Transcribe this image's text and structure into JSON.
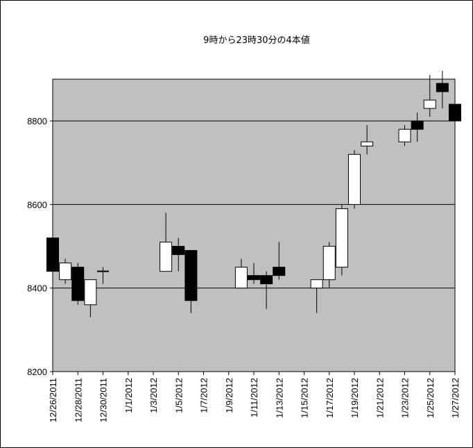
{
  "chart_data": {
    "type": "candlestick",
    "title": "9時から23時30分の4本値",
    "xlabel": "",
    "ylabel": "",
    "ylim": [
      8200,
      8900
    ],
    "yticks": [
      8200,
      8400,
      8600,
      8800
    ],
    "grid": "horizontal",
    "plot_background": "#c0c0c0",
    "up_color": "#ffffff",
    "down_color": "#000000",
    "x_start": "2011-12-26",
    "x_end": "2012-01-27",
    "xticks": [
      "12/26/2011",
      "12/28/2011",
      "12/30/2011",
      "1/1/2012",
      "1/3/2012",
      "1/5/2012",
      "1/7/2012",
      "1/9/2012",
      "1/11/2012",
      "1/13/2012",
      "1/15/2012",
      "1/17/2012",
      "1/19/2012",
      "1/21/2012",
      "1/23/2012",
      "1/25/2012",
      "1/27/2012"
    ],
    "candles": [
      {
        "date": "2011-12-26",
        "open": 8520,
        "high": 8520,
        "low": 8440,
        "close": 8440
      },
      {
        "date": "2011-12-27",
        "open": 8420,
        "high": 8470,
        "low": 8410,
        "close": 8460
      },
      {
        "date": "2011-12-28",
        "open": 8450,
        "high": 8460,
        "low": 8360,
        "close": 8370
      },
      {
        "date": "2011-12-29",
        "open": 8360,
        "high": 8420,
        "low": 8330,
        "close": 8420
      },
      {
        "date": "2011-12-30",
        "open": 8440,
        "high": 8450,
        "low": 8410,
        "close": 8440
      },
      {
        "date": "2012-01-04",
        "open": 8440,
        "high": 8580,
        "low": 8440,
        "close": 8510
      },
      {
        "date": "2012-01-05",
        "open": 8500,
        "high": 8520,
        "low": 8440,
        "close": 8480
      },
      {
        "date": "2012-01-06",
        "open": 8490,
        "high": 8490,
        "low": 8340,
        "close": 8370
      },
      {
        "date": "2012-01-10",
        "open": 8400,
        "high": 8470,
        "low": 8400,
        "close": 8450
      },
      {
        "date": "2012-01-11",
        "open": 8430,
        "high": 8460,
        "low": 8410,
        "close": 8420
      },
      {
        "date": "2012-01-12",
        "open": 8430,
        "high": 8440,
        "low": 8350,
        "close": 8410
      },
      {
        "date": "2012-01-13",
        "open": 8450,
        "high": 8510,
        "low": 8420,
        "close": 8430
      },
      {
        "date": "2012-01-16",
        "open": 8400,
        "high": 8420,
        "low": 8340,
        "close": 8420
      },
      {
        "date": "2012-01-17",
        "open": 8420,
        "high": 8510,
        "low": 8400,
        "close": 8500
      },
      {
        "date": "2012-01-18",
        "open": 8450,
        "high": 8600,
        "low": 8430,
        "close": 8590
      },
      {
        "date": "2012-01-19",
        "open": 8600,
        "high": 8730,
        "low": 8590,
        "close": 8720
      },
      {
        "date": "2012-01-20",
        "open": 8740,
        "high": 8790,
        "low": 8720,
        "close": 8750
      },
      {
        "date": "2012-01-23",
        "open": 8750,
        "high": 8790,
        "low": 8740,
        "close": 8780
      },
      {
        "date": "2012-01-24",
        "open": 8800,
        "high": 8820,
        "low": 8750,
        "close": 8780
      },
      {
        "date": "2012-01-25",
        "open": 8830,
        "high": 8910,
        "low": 8810,
        "close": 8850
      },
      {
        "date": "2012-01-26",
        "open": 8890,
        "high": 8920,
        "low": 8830,
        "close": 8870
      },
      {
        "date": "2012-01-27",
        "open": 8840,
        "high": 8890,
        "low": 8800,
        "close": 8800
      }
    ]
  }
}
